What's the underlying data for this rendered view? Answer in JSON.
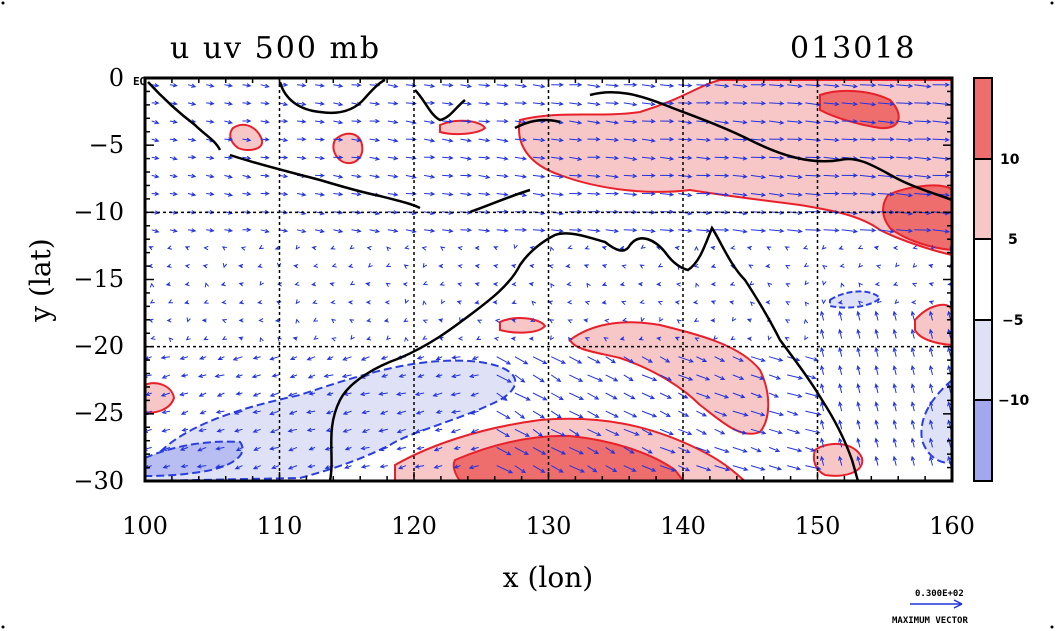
{
  "chart_data": {
    "type": "heatmap",
    "title": "u uv 500 mb",
    "date_label": "013018",
    "xlabel": "x (lon)",
    "ylabel": "y (lat)",
    "xlim": [
      100,
      160
    ],
    "ylim": [
      -30,
      0
    ],
    "x_ticks": [
      "100",
      "110",
      "120",
      "130",
      "140",
      "150",
      "160"
    ],
    "y_ticks": [
      "0",
      "−5",
      "−10",
      "−15",
      "−20",
      "−25",
      "−30"
    ],
    "equator_label": "EQ",
    "grid": true,
    "colorbar": {
      "levels": [
        "10",
        "5",
        "−5",
        "−10"
      ],
      "bins": [
        {
          "range": "> 10",
          "color": "#ee6e6e"
        },
        {
          "range": "5 to 10",
          "color": "#f7c6c6"
        },
        {
          "range": "-5 to 5",
          "color": "#ffffff"
        },
        {
          "range": "-10 to -5",
          "color": "#dfe2f7"
        },
        {
          "range": "< -10",
          "color": "#a3a8ee"
        }
      ]
    },
    "regions": [
      {
        "name": "positive-wind-north",
        "sign": "positive",
        "center_lon": 150,
        "center_lat": -5
      },
      {
        "name": "positive-wind-central",
        "sign": "positive",
        "center_lon": 142,
        "center_lat": -22
      },
      {
        "name": "positive-wind-south",
        "sign": "positive",
        "center_lon": 133,
        "center_lat": -28
      },
      {
        "name": "negative-wind-west",
        "sign": "negative",
        "center_lon": 112,
        "center_lat": -25
      }
    ],
    "vector_reference": {
      "magnitude": "0.300E+02",
      "label": "MAXIMUM VECTOR"
    },
    "colors": {
      "positive_contour": "#e8202a",
      "negative_contour": "#2a3ee0",
      "vectors": "#2233dd",
      "coast": "#000000"
    }
  }
}
